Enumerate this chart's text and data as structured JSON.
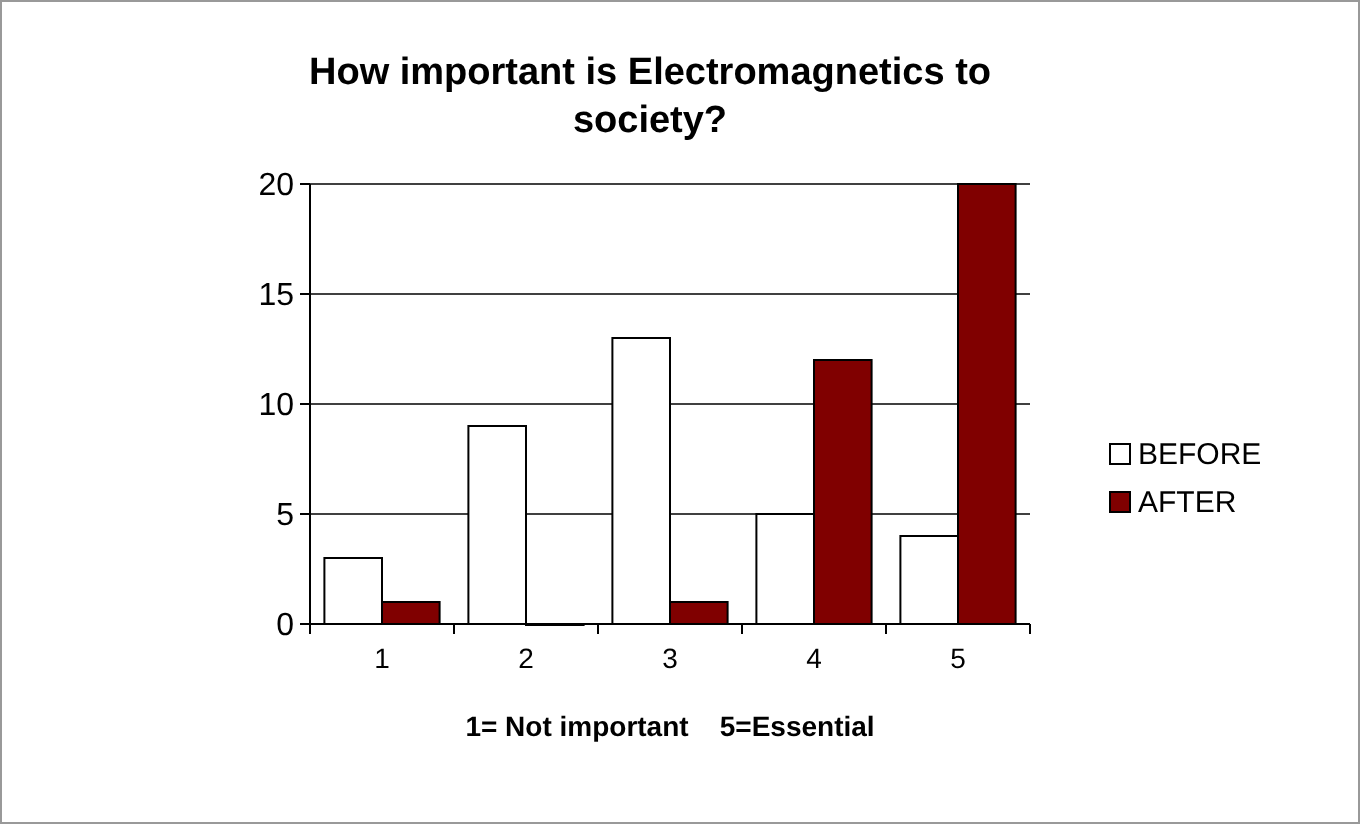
{
  "chart_data": {
    "type": "bar",
    "title": "How important is Electromagnetics to society?",
    "xlabel": "1= Not important    5=Essential",
    "categories": [
      "1",
      "2",
      "3",
      "4",
      "5"
    ],
    "series": [
      {
        "name": "BEFORE",
        "color": "#ffffff",
        "values": [
          3,
          9,
          13,
          5,
          4
        ]
      },
      {
        "name": "AFTER",
        "color": "#800000",
        "values": [
          1,
          0,
          1,
          12,
          20
        ]
      }
    ],
    "ylim": [
      0,
      20
    ],
    "yticks": [
      0,
      5,
      10,
      15,
      20
    ],
    "grid": "y",
    "legend": "right"
  }
}
